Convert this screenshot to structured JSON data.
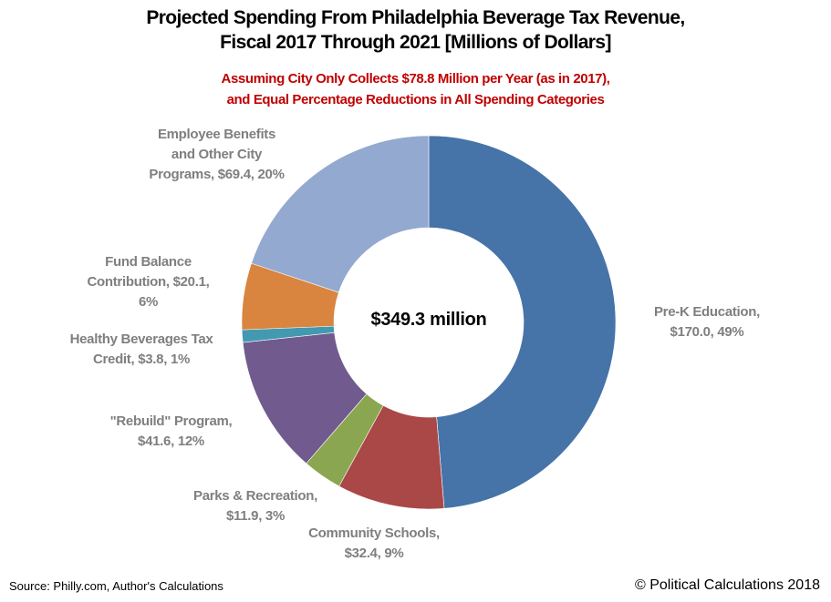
{
  "chart_data": {
    "type": "pie",
    "variant": "donut",
    "title": "Projected Spending From Philadelphia Beverage Tax Revenue,",
    "title_line2": "Fiscal 2017 Through 2021 [Millions of Dollars]",
    "subtitle": "Assuming City Only Collects $78.8 Million per Year (as in 2017),",
    "subtitle_line2": "and Equal Percentage Reductions in All Spending Categories",
    "center_label": "$349.3 million",
    "start_angle": "12 o'clock, clockwise",
    "slices": [
      {
        "name": "Pre-K Education",
        "value": 170.0,
        "percent": 49,
        "color": "#4673A8",
        "label_lines": [
          "Pre-K Education,",
          "$170.0, 49%"
        ]
      },
      {
        "name": "Community Schools",
        "value": 32.4,
        "percent": 9,
        "color": "#A94846",
        "label_lines": [
          "Community Schools,",
          "$32.4, 9%"
        ]
      },
      {
        "name": "Parks & Recreation",
        "value": 11.9,
        "percent": 3,
        "color": "#8AA650",
        "label_lines": [
          "Parks & Recreation,",
          "$11.9, 3%"
        ]
      },
      {
        "name": "\"Rebuild\" Program",
        "value": 41.6,
        "percent": 12,
        "color": "#705A8E",
        "label_lines": [
          "\"Rebuild\" Program,",
          "$41.6, 12%"
        ]
      },
      {
        "name": "Healthy Beverages Tax Credit",
        "value": 3.8,
        "percent": 1,
        "color": "#4299B0",
        "label_lines": [
          "Healthy Beverages Tax",
          "Credit, $3.8, 1%"
        ]
      },
      {
        "name": "Fund Balance Contribution",
        "value": 20.1,
        "percent": 6,
        "color": "#D9843F",
        "label_lines": [
          "Fund Balance",
          "Contribution, $20.1,",
          "6%"
        ]
      },
      {
        "name": "Employee Benefits and Other City Programs",
        "value": 69.4,
        "percent": 20,
        "color": "#93A9CF",
        "label_lines": [
          "Employee Benefits",
          "and Other City",
          "Programs, $69.4, 20%"
        ]
      }
    ]
  },
  "footer": {
    "source": "Source: Philly.com, Author's Calculations",
    "copyright": "© Political Calculations 2018"
  }
}
